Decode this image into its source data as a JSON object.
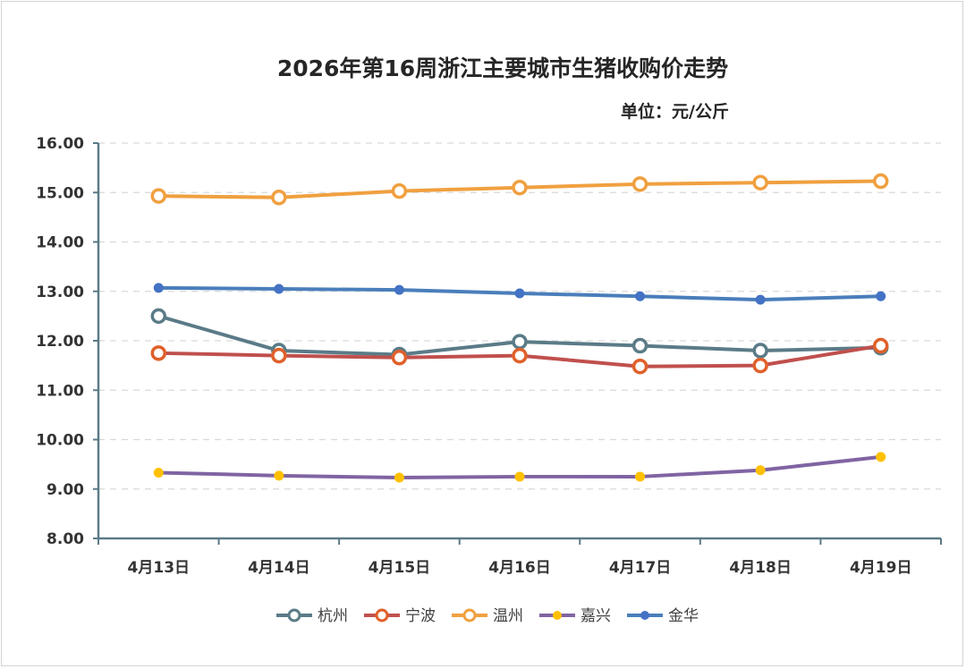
{
  "chart_data": {
    "type": "line",
    "title": "2026年第16周浙江主要城市生猪收购价走势",
    "unit_label": "单位：元/公斤",
    "xlabel": "",
    "ylabel": "",
    "ylim": [
      8,
      16
    ],
    "yticks": [
      "8.00",
      "9.00",
      "10.00",
      "11.00",
      "12.00",
      "13.00",
      "14.00",
      "15.00",
      "16.00"
    ],
    "grid": true,
    "legend_position": "bottom-center",
    "categories": [
      "4月13日",
      "4月14日",
      "4月15日",
      "4月16日",
      "4月17日",
      "4月18日",
      "4月19日"
    ],
    "series": [
      {
        "name": "杭州",
        "color": "#5a7b87",
        "marker": "hollow-circle",
        "marker_fill": "#ffffff",
        "values": [
          12.5,
          11.8,
          11.72,
          11.98,
          11.9,
          11.8,
          11.86
        ]
      },
      {
        "name": "宁波",
        "color": "#c0504d",
        "marker": "hollow-circle",
        "marker_fill": "#ffffff",
        "marker_stroke": "#e0602a",
        "values": [
          11.75,
          11.7,
          11.66,
          11.7,
          11.48,
          11.5,
          11.9
        ]
      },
      {
        "name": "温州",
        "color": "#f0a040",
        "marker": "hollow-circle",
        "marker_fill": "#ffffff",
        "values": [
          14.93,
          14.9,
          15.03,
          15.1,
          15.17,
          15.2,
          15.23
        ]
      },
      {
        "name": "嘉兴",
        "color": "#8064a2",
        "marker": "filled-dot",
        "marker_fill": "#ffc000",
        "values": [
          9.33,
          9.27,
          9.23,
          9.25,
          9.25,
          9.38,
          9.65
        ]
      },
      {
        "name": "金华",
        "color": "#4a7ebb",
        "marker": "filled-dot",
        "marker_fill": "#4472c4",
        "values": [
          13.07,
          13.05,
          13.03,
          12.96,
          12.9,
          12.83,
          12.9
        ]
      }
    ]
  }
}
